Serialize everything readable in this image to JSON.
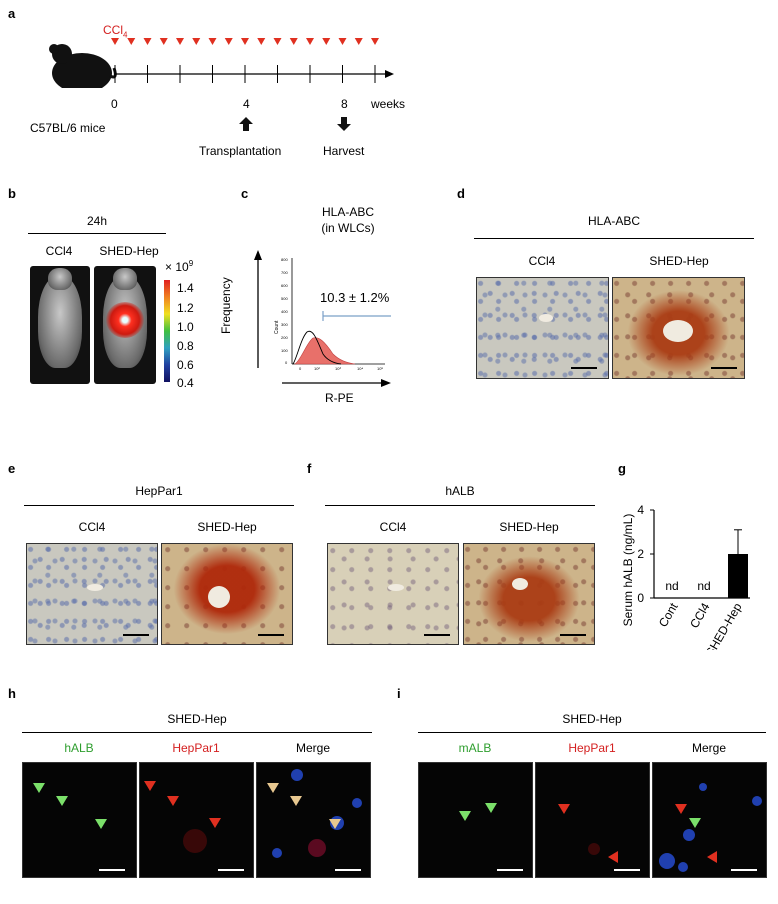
{
  "panels": {
    "a": {
      "label": "a",
      "treatment": "CCl",
      "treatment_sub": "4",
      "ticks": [
        "0",
        "4",
        "8"
      ],
      "unit": "weeks",
      "strain": "C57BL/6 mice",
      "event1": "Transplantation",
      "event2": "Harvest"
    },
    "b": {
      "label": "b",
      "time": "24h",
      "col1": "CCl4",
      "col2": "SHED-Hep",
      "scale_exp": "× 10",
      "scale_exp_sup": "9",
      "scale_ticks": [
        "1.4",
        "1.2",
        "1.0",
        "0.8",
        "0.6",
        "0.4"
      ]
    },
    "c": {
      "label": "c",
      "title1": "HLA-ABC",
      "title2": "(in WLCs)",
      "yaxis": "Frequency",
      "xaxis": "R-PE",
      "stat": "10.3 ± 1.2%",
      "count_label": "Count"
    },
    "d": {
      "label": "d",
      "title": "HLA-ABC",
      "col1": "CCl4",
      "col2": "SHED-Hep"
    },
    "e": {
      "label": "e",
      "title": "HepPar1",
      "col1": "CCl4",
      "col2": "SHED-Hep"
    },
    "f": {
      "label": "f",
      "title": "hALB",
      "col1": "CCl4",
      "col2": "SHED-Hep"
    },
    "h": {
      "label": "h",
      "title": "SHED-Hep",
      "ch1": "hALB",
      "ch2": "HepPar1",
      "ch3": "Merge"
    },
    "i": {
      "label": "i",
      "title": "SHED-Hep",
      "ch1": "mALB",
      "ch2": "HepPar1",
      "ch3": "Merge"
    },
    "g": {
      "label": "g"
    }
  },
  "chart_data": {
    "type": "bar",
    "categories": [
      "Cont",
      "CCl4",
      "SHED-Hep"
    ],
    "values": [
      null,
      null,
      2.0
    ],
    "errors": [
      null,
      null,
      1.1
    ],
    "bar_annotations": [
      "nd",
      "nd",
      ""
    ],
    "ylabel": "Serum hALB (ng/mL)",
    "yticks": [
      "0",
      "2",
      "4"
    ],
    "ylim": [
      0,
      4
    ]
  },
  "colors": {
    "accent_red": "#d42020",
    "green_label": "#2e9e2e",
    "red_label": "#d42020",
    "flow_fill": "#e8706a",
    "flow_gate": "#7aa0c8",
    "arrow_green": "#7be06a",
    "arrow_red": "#e03020",
    "arrow_tan": "#e8c890"
  }
}
